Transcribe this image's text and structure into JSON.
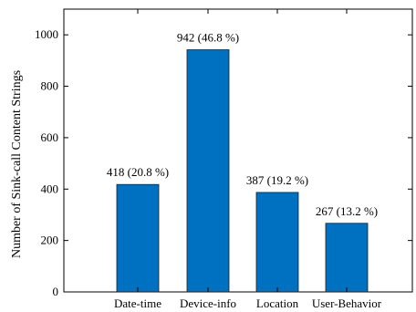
{
  "chart_data": {
    "type": "bar",
    "categories": [
      "Date-time",
      "Device-info",
      "Location",
      "User-Behavior"
    ],
    "values": [
      418,
      942,
      387,
      267
    ],
    "data_labels": [
      "418 (20.8 %)",
      "942 (46.8 %)",
      "387 (19.2 %)",
      "267 (13.2 %)"
    ],
    "ylabel": "Number of Sink-call Content Strings",
    "xlabel": "",
    "ylim": [
      0,
      1100
    ],
    "yticks": [
      0,
      200,
      400,
      600,
      800,
      1000
    ],
    "bar_color": "#0070c0",
    "grid": false,
    "legend": "none"
  }
}
